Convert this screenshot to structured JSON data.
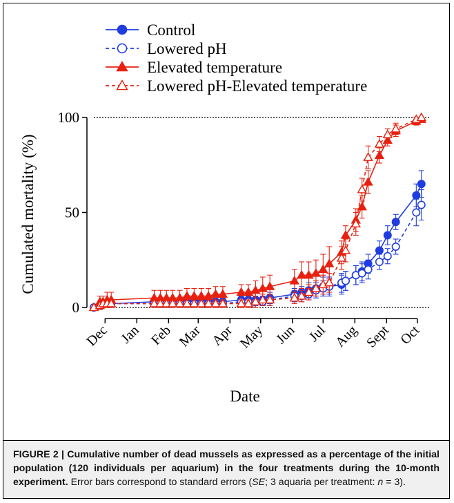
{
  "chart_data": {
    "type": "line",
    "ylabel": "Cumulated mortality (%)",
    "xlabel": "Date",
    "ylim": [
      0,
      100
    ],
    "yticks": [
      0,
      50,
      100
    ],
    "reference_lines": [
      0,
      100
    ],
    "legend_position": "top-center",
    "x_months": [
      "Dec",
      "Jan",
      "Feb",
      "Mar",
      "Apr",
      "May",
      "Jun",
      "Jul",
      "Aug",
      "Sept",
      "Oct"
    ],
    "month_starts": [
      "2011-12-01",
      "2012-01-01",
      "2012-02-01",
      "2012-03-01",
      "2012-04-01",
      "2012-05-01",
      "2012-06-01",
      "2012-07-01",
      "2012-08-01",
      "2012-09-01",
      "2012-10-01"
    ],
    "x_range": [
      "2011-11-18",
      "2012-10-20"
    ],
    "series": [
      {
        "name": "Control",
        "color": "#1f3de0",
        "marker": "circle",
        "fill": true,
        "dash": false,
        "points": [
          [
            "2011-11-20",
            0,
            0
          ],
          [
            "2011-11-26",
            1,
            2
          ],
          [
            "2011-11-29",
            2,
            2
          ],
          [
            "2011-12-03",
            2,
            2
          ],
          [
            "2011-12-07",
            2,
            2
          ],
          [
            "2012-01-18",
            3,
            2
          ],
          [
            "2012-01-24",
            3,
            2
          ],
          [
            "2012-01-30",
            3,
            2
          ],
          [
            "2012-02-05",
            3,
            2
          ],
          [
            "2012-02-12",
            3,
            2
          ],
          [
            "2012-02-19",
            3,
            2
          ],
          [
            "2012-02-26",
            3,
            2
          ],
          [
            "2012-03-04",
            3,
            2
          ],
          [
            "2012-03-11",
            3,
            2
          ],
          [
            "2012-03-18",
            3,
            2
          ],
          [
            "2012-03-25",
            3,
            2
          ],
          [
            "2012-04-12",
            4,
            2
          ],
          [
            "2012-04-19",
            4,
            2
          ],
          [
            "2012-04-26",
            4,
            2
          ],
          [
            "2012-05-03",
            4,
            2
          ],
          [
            "2012-05-10",
            5,
            3
          ],
          [
            "2012-06-03",
            7,
            3
          ],
          [
            "2012-06-10",
            8,
            3
          ],
          [
            "2012-06-17",
            9,
            4
          ],
          [
            "2012-06-24",
            10,
            4
          ],
          [
            "2012-07-01",
            11,
            5
          ],
          [
            "2012-07-07",
            11,
            5
          ],
          [
            "2012-07-19",
            12,
            5
          ],
          [
            "2012-07-23",
            14,
            5
          ],
          [
            "2012-08-02",
            17,
            5
          ],
          [
            "2012-08-08",
            19,
            5
          ],
          [
            "2012-08-14",
            23,
            5
          ],
          [
            "2012-08-25",
            30,
            5
          ],
          [
            "2012-09-02",
            38,
            5
          ],
          [
            "2012-09-10",
            45,
            4
          ],
          [
            "2012-09-30",
            59,
            6
          ],
          [
            "2012-10-05",
            65,
            7
          ]
        ]
      },
      {
        "name": "Lowered pH",
        "color": "#1f3de0",
        "marker": "circle",
        "fill": false,
        "dash": true,
        "points": [
          [
            "2011-11-20",
            0,
            0
          ],
          [
            "2011-11-26",
            1,
            2
          ],
          [
            "2011-11-29",
            2,
            2
          ],
          [
            "2011-12-03",
            2,
            2
          ],
          [
            "2011-12-07",
            2,
            2
          ],
          [
            "2012-01-18",
            2,
            2
          ],
          [
            "2012-01-24",
            2,
            2
          ],
          [
            "2012-01-30",
            2,
            2
          ],
          [
            "2012-02-05",
            2,
            2
          ],
          [
            "2012-02-12",
            2,
            2
          ],
          [
            "2012-02-19",
            2,
            2
          ],
          [
            "2012-02-26",
            2,
            2
          ],
          [
            "2012-03-04",
            2,
            2
          ],
          [
            "2012-03-11",
            2,
            2
          ],
          [
            "2012-03-18",
            2,
            2
          ],
          [
            "2012-03-25",
            2,
            2
          ],
          [
            "2012-04-12",
            3,
            2
          ],
          [
            "2012-04-19",
            3,
            2
          ],
          [
            "2012-04-26",
            3,
            2
          ],
          [
            "2012-05-03",
            3,
            2
          ],
          [
            "2012-05-10",
            4,
            3
          ],
          [
            "2012-06-03",
            6,
            3
          ],
          [
            "2012-06-10",
            6,
            3
          ],
          [
            "2012-06-17",
            7,
            3
          ],
          [
            "2012-06-24",
            9,
            4
          ],
          [
            "2012-07-01",
            10,
            4
          ],
          [
            "2012-07-07",
            11,
            4
          ],
          [
            "2012-07-19",
            13,
            5
          ],
          [
            "2012-07-23",
            14,
            5
          ],
          [
            "2012-08-02",
            17,
            5
          ],
          [
            "2012-08-08",
            18,
            5
          ],
          [
            "2012-08-14",
            20,
            5
          ],
          [
            "2012-08-25",
            24,
            4
          ],
          [
            "2012-09-02",
            27,
            4
          ],
          [
            "2012-09-10",
            32,
            4
          ],
          [
            "2012-09-30",
            50,
            7
          ],
          [
            "2012-10-05",
            54,
            8
          ]
        ]
      },
      {
        "name": "Elevated temperature",
        "color": "#e8200f",
        "marker": "triangle",
        "fill": true,
        "dash": false,
        "points": [
          [
            "2011-11-20",
            0,
            0
          ],
          [
            "2011-11-26",
            3,
            3
          ],
          [
            "2011-11-29",
            3,
            3
          ],
          [
            "2011-12-03",
            4,
            4
          ],
          [
            "2011-12-07",
            4,
            4
          ],
          [
            "2012-01-18",
            5,
            4
          ],
          [
            "2012-01-24",
            5,
            4
          ],
          [
            "2012-01-30",
            5,
            4
          ],
          [
            "2012-02-05",
            5,
            4
          ],
          [
            "2012-02-12",
            5,
            4
          ],
          [
            "2012-02-19",
            6,
            4
          ],
          [
            "2012-02-26",
            6,
            4
          ],
          [
            "2012-03-04",
            6,
            4
          ],
          [
            "2012-03-11",
            6,
            4
          ],
          [
            "2012-03-18",
            7,
            4
          ],
          [
            "2012-03-25",
            7,
            4
          ],
          [
            "2012-04-12",
            8,
            4
          ],
          [
            "2012-04-19",
            8,
            4
          ],
          [
            "2012-04-26",
            9,
            5
          ],
          [
            "2012-05-03",
            10,
            6
          ],
          [
            "2012-05-10",
            11,
            6
          ],
          [
            "2012-06-03",
            14,
            6
          ],
          [
            "2012-06-10",
            17,
            7
          ],
          [
            "2012-06-17",
            17,
            7
          ],
          [
            "2012-06-24",
            18,
            7
          ],
          [
            "2012-07-01",
            20,
            8
          ],
          [
            "2012-07-07",
            23,
            9
          ],
          [
            "2012-07-19",
            29,
            6
          ],
          [
            "2012-07-23",
            38,
            5
          ],
          [
            "2012-08-02",
            46,
            6
          ],
          [
            "2012-08-08",
            53,
            6
          ],
          [
            "2012-08-14",
            66,
            6
          ],
          [
            "2012-08-25",
            80,
            4
          ],
          [
            "2012-09-02",
            88,
            3
          ],
          [
            "2012-09-10",
            93,
            3
          ],
          [
            "2012-09-30",
            98,
            2
          ],
          [
            "2012-10-05",
            99,
            1
          ]
        ]
      },
      {
        "name": "Lowered pH-Elevated temperature",
        "color": "#e8200f",
        "marker": "triangle",
        "fill": false,
        "dash": true,
        "points": [
          [
            "2011-11-20",
            0,
            0
          ],
          [
            "2011-11-26",
            1,
            2
          ],
          [
            "2011-11-29",
            2,
            2
          ],
          [
            "2011-12-03",
            2,
            2
          ],
          [
            "2011-12-07",
            2,
            2
          ],
          [
            "2012-01-18",
            2,
            2
          ],
          [
            "2012-01-24",
            2,
            2
          ],
          [
            "2012-01-30",
            2,
            2
          ],
          [
            "2012-02-05",
            2,
            2
          ],
          [
            "2012-02-12",
            2,
            2
          ],
          [
            "2012-02-19",
            2,
            2
          ],
          [
            "2012-02-26",
            2,
            2
          ],
          [
            "2012-03-04",
            2,
            2
          ],
          [
            "2012-03-11",
            2,
            2
          ],
          [
            "2012-03-18",
            2,
            2
          ],
          [
            "2012-03-25",
            2,
            2
          ],
          [
            "2012-04-12",
            2,
            2
          ],
          [
            "2012-04-19",
            2,
            2
          ],
          [
            "2012-04-26",
            3,
            3
          ],
          [
            "2012-05-03",
            4,
            3
          ],
          [
            "2012-05-10",
            4,
            3
          ],
          [
            "2012-06-03",
            5,
            3
          ],
          [
            "2012-06-10",
            6,
            3
          ],
          [
            "2012-06-17",
            8,
            4
          ],
          [
            "2012-06-24",
            10,
            4
          ],
          [
            "2012-07-01",
            12,
            5
          ],
          [
            "2012-07-07",
            13,
            5
          ],
          [
            "2012-07-19",
            26,
            6
          ],
          [
            "2012-07-23",
            30,
            6
          ],
          [
            "2012-08-02",
            44,
            6
          ],
          [
            "2012-08-08",
            62,
            6
          ],
          [
            "2012-08-14",
            79,
            6
          ],
          [
            "2012-08-25",
            86,
            4
          ],
          [
            "2012-09-02",
            91,
            3
          ],
          [
            "2012-09-10",
            94,
            3
          ],
          [
            "2012-09-30",
            99,
            1
          ],
          [
            "2012-10-05",
            100,
            0
          ]
        ]
      }
    ]
  },
  "caption": {
    "bold": "FIGURE 2 | Cumulative number of dead mussels as expressed as a percentage of the initial population (120 individuals per aquarium) in the four treatments during the 10-month experiment.",
    "normal_1": " Error bars correspond to standard errors (",
    "italic_1": "SE",
    "normal_2": "; 3 aquaria per treatment: ",
    "italic_2": "n",
    "normal_3": " = 3)."
  }
}
